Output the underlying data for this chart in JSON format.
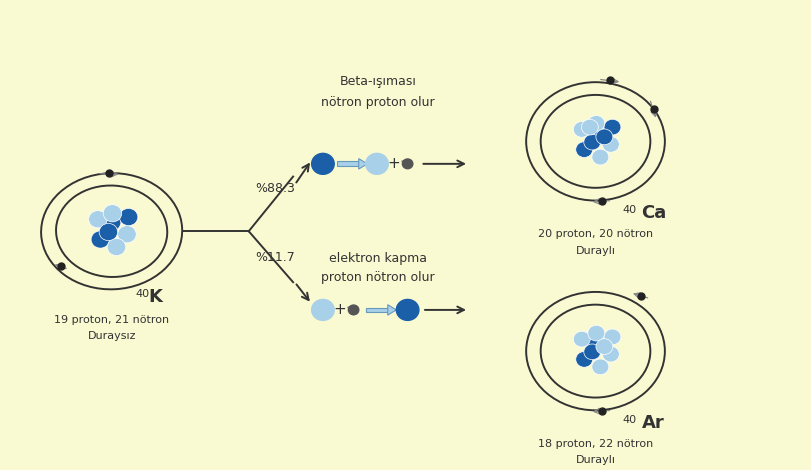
{
  "bg_color": "#FAFAD2",
  "atom_dark_blue": "#1A5FA8",
  "atom_light_blue": "#A8D0E8",
  "electron_color": "#222222",
  "arrow_color": "#333333",
  "double_arrow_color": "#A8D0E8",
  "text_color": "#333333",
  "K_sub1": "19 proton, 21 nötron",
  "K_sub2": "Duraysız",
  "Ca_sub1": "20 proton, 20 nötron",
  "Ca_sub2": "Duraylı",
  "Ar_sub1": "18 proton, 22 nötron",
  "Ar_sub2": "Duraylı",
  "beta_line1": "Beta-ışıması",
  "beta_line2": "nötron proton olur",
  "electron_line1": "elektron kapma",
  "electron_line2": "proton nötron olur",
  "pct_upper": "%88.3",
  "pct_lower": "%11.7"
}
